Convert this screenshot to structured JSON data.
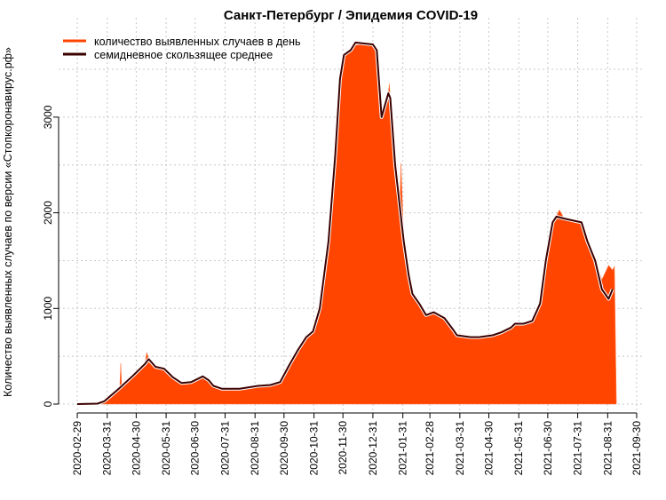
{
  "chart_data": {
    "type": "area",
    "title": "Санкт-Петербург / Эпидемия COVID-19",
    "ylabel": "Количество выявленных случаев по версии «Стопкоронавирус.рф»",
    "xlabel": "",
    "ylim": [
      0,
      3800
    ],
    "yticks": [
      0,
      1000,
      2000,
      3000
    ],
    "ytick_labels": [
      "0",
      "1000",
      "2000",
      "3000"
    ],
    "x_origin": "2020-02-29",
    "x_unit": "days since 2020-02-29",
    "xticks": [
      0,
      31,
      61,
      92,
      122,
      153,
      184,
      214,
      245,
      275,
      306,
      337,
      365,
      396,
      426,
      457,
      487,
      518,
      549,
      579
    ],
    "xtick_labels": [
      "2020-02-29",
      "2020-03-31",
      "2020-04-30",
      "2020-05-31",
      "2020-06-30",
      "2020-07-31",
      "2020-08-31",
      "2020-09-30",
      "2020-10-31",
      "2020-11-30",
      "2020-12-31",
      "2021-01-31",
      "2021-02-28",
      "2021-03-31",
      "2021-04-30",
      "2021-05-31",
      "2021-06-30",
      "2021-07-31",
      "2021-08-31",
      "2021-09-30"
    ],
    "grid": true,
    "legend_position": "top-left",
    "series": [
      {
        "name": "количество выявленных случаев в день",
        "color": "#ff4500",
        "x": [
          0,
          21,
          28,
          44,
          45,
          46,
          58,
          70,
          72,
          74,
          81,
          90,
          99,
          108,
          118,
          130,
          136,
          141,
          150,
          168,
          187,
          200,
          210,
          219,
          228,
          237,
          244,
          251,
          260,
          267,
          272,
          276,
          283,
          288,
          297,
          306,
          310,
          315,
          322,
          323,
          324,
          329,
          334,
          335,
          338,
          343,
          347,
          354,
          361,
          369,
          380,
          389,
          393,
          407,
          416,
          430,
          439,
          449,
          453,
          462,
          471,
          479,
          485,
          492,
          496,
          499,
          504,
          522,
          528,
          536,
          543,
          550,
          554,
          556,
          558
        ],
        "y": [
          0,
          5,
          30,
          170,
          430,
          180,
          300,
          420,
          540,
          470,
          390,
          370,
          280,
          220,
          230,
          290,
          250,
          190,
          160,
          160,
          190,
          200,
          230,
          400,
          560,
          700,
          760,
          1000,
          1700,
          2600,
          3400,
          3650,
          3700,
          3780,
          3770,
          3760,
          3700,
          3000,
          3250,
          3350,
          3200,
          2500,
          2050,
          2520,
          1700,
          1350,
          1150,
          1050,
          930,
          960,
          900,
          780,
          720,
          700,
          700,
          720,
          750,
          800,
          840,
          840,
          870,
          1050,
          1500,
          1900,
          1960,
          2030,
          1940,
          1900,
          1700,
          1500,
          1300,
          1450,
          1400,
          1440,
          0
        ]
      },
      {
        "name": "семидневное скользящее среднее",
        "color": "#3a0000",
        "x": [
          0,
          21,
          28,
          44,
          58,
          70,
          74,
          81,
          90,
          99,
          108,
          118,
          130,
          136,
          141,
          150,
          168,
          187,
          200,
          210,
          219,
          228,
          237,
          244,
          251,
          260,
          267,
          272,
          276,
          283,
          288,
          297,
          306,
          310,
          315,
          322,
          324,
          329,
          334,
          338,
          343,
          347,
          354,
          361,
          369,
          380,
          389,
          393,
          407,
          416,
          430,
          439,
          449,
          453,
          462,
          471,
          479,
          485,
          492,
          496,
          504,
          522,
          528,
          536,
          543,
          550,
          554
        ],
        "y": [
          0,
          5,
          30,
          170,
          300,
          420,
          470,
          390,
          370,
          280,
          220,
          230,
          290,
          250,
          190,
          160,
          160,
          190,
          200,
          230,
          400,
          560,
          700,
          760,
          1000,
          1700,
          2600,
          3400,
          3650,
          3700,
          3780,
          3770,
          3760,
          3700,
          3000,
          3250,
          3200,
          2500,
          2050,
          1700,
          1350,
          1150,
          1050,
          930,
          960,
          900,
          780,
          720,
          700,
          700,
          720,
          750,
          800,
          840,
          840,
          870,
          1050,
          1500,
          1900,
          1960,
          1940,
          1900,
          1700,
          1500,
          1200,
          1100,
          1200
        ]
      }
    ]
  }
}
